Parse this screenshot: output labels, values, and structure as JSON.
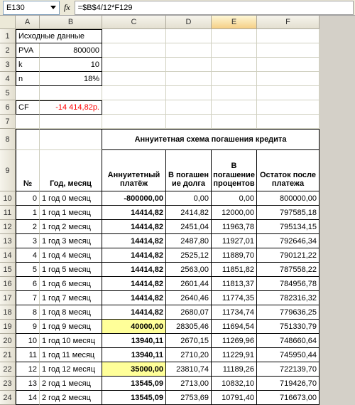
{
  "formula_bar": {
    "cell_ref": "E130",
    "fx_label": "fx",
    "formula": "=$B$4/12*F129"
  },
  "columns": [
    "A",
    "B",
    "C",
    "D",
    "E",
    "F"
  ],
  "input_title": "Исходные данные",
  "params": {
    "pva_label": "PVA",
    "pva_value": "800000",
    "k_label": "k",
    "k_value": "10",
    "n_label": "n",
    "n_value": "18%",
    "cf_label": "CF",
    "cf_value": "-14 414,82р."
  },
  "section_title": "Аннуитетная схема погашения кредита",
  "headers": {
    "num": "№",
    "period": "Год, месяц",
    "payment": "Аннуитетный платёж",
    "principal": "В погашен ие долга",
    "interest": "В погашение процентов",
    "balance": "Остаток после платежа"
  },
  "rows": [
    {
      "n": "0",
      "period": "1 год 0 месяц",
      "pay": "-800000,00",
      "prin": "0,00",
      "int": "0,00",
      "bal": "800000,00",
      "hl": false
    },
    {
      "n": "1",
      "period": "1 год 1 месяц",
      "pay": "14414,82",
      "prin": "2414,82",
      "int": "12000,00",
      "bal": "797585,18",
      "hl": false
    },
    {
      "n": "2",
      "period": "1 год 2 месяц",
      "pay": "14414,82",
      "prin": "2451,04",
      "int": "11963,78",
      "bal": "795134,15",
      "hl": false
    },
    {
      "n": "3",
      "period": "1 год 3 месяц",
      "pay": "14414,82",
      "prin": "2487,80",
      "int": "11927,01",
      "bal": "792646,34",
      "hl": false
    },
    {
      "n": "4",
      "period": "1 год 4 месяц",
      "pay": "14414,82",
      "prin": "2525,12",
      "int": "11889,70",
      "bal": "790121,22",
      "hl": false
    },
    {
      "n": "5",
      "period": "1 год 5 месяц",
      "pay": "14414,82",
      "prin": "2563,00",
      "int": "11851,82",
      "bal": "787558,22",
      "hl": false
    },
    {
      "n": "6",
      "period": "1 год 6 месяц",
      "pay": "14414,82",
      "prin": "2601,44",
      "int": "11813,37",
      "bal": "784956,78",
      "hl": false
    },
    {
      "n": "7",
      "period": "1 год 7 месяц",
      "pay": "14414,82",
      "prin": "2640,46",
      "int": "11774,35",
      "bal": "782316,32",
      "hl": false
    },
    {
      "n": "8",
      "period": "1 год 8 месяц",
      "pay": "14414,82",
      "prin": "2680,07",
      "int": "11734,74",
      "bal": "779636,25",
      "hl": false
    },
    {
      "n": "9",
      "period": "1 год 9 месяц",
      "pay": "40000,00",
      "prin": "28305,46",
      "int": "11694,54",
      "bal": "751330,79",
      "hl": true
    },
    {
      "n": "10",
      "period": "1 год 10 месяц",
      "pay": "13940,11",
      "prin": "2670,15",
      "int": "11269,96",
      "bal": "748660,64",
      "hl": false
    },
    {
      "n": "11",
      "period": "1 год 11 месяц",
      "pay": "13940,11",
      "prin": "2710,20",
      "int": "11229,91",
      "bal": "745950,44",
      "hl": false
    },
    {
      "n": "12",
      "period": "1 год 12 месяц",
      "pay": "35000,00",
      "prin": "23810,74",
      "int": "11189,26",
      "bal": "722139,70",
      "hl": true
    },
    {
      "n": "13",
      "period": "2 год 1 месяц",
      "pay": "13545,09",
      "prin": "2713,00",
      "int": "10832,10",
      "bal": "719426,70",
      "hl": false
    },
    {
      "n": "14",
      "period": "2 год 2 месяц",
      "pay": "13545,09",
      "prin": "2753,69",
      "int": "10791,40",
      "bal": "716673,00",
      "hl": false
    }
  ],
  "row_heights": {
    "normal": 20,
    "r8": 30,
    "r9": 58
  },
  "colors": {
    "highlight": "#ffff99",
    "cf_text": "#ff0000",
    "gridline": "#d0d0c0",
    "header_bg_top": "#f6f4ec",
    "header_bg_bot": "#e3dfd0",
    "sel_col_top": "#fef7d6",
    "sel_col_bot": "#f5cf86"
  },
  "typography": {
    "font_family": "Arial",
    "font_size_pt": 8
  }
}
